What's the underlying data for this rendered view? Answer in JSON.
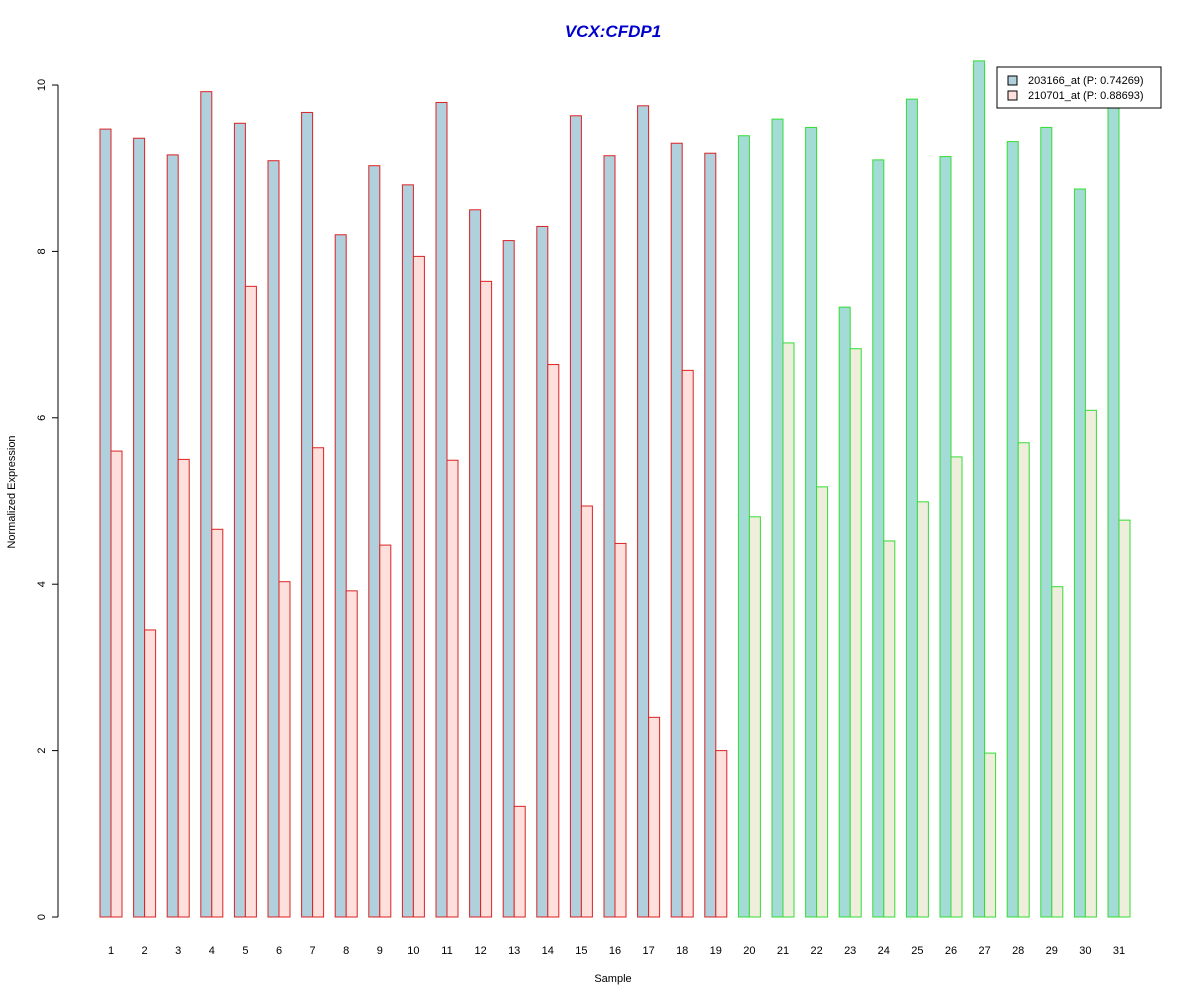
{
  "chart_data": {
    "type": "bar",
    "title": "VCX:CFDP1",
    "xlabel": "Sample",
    "ylabel": "Normalized Expression",
    "ylim": [
      0,
      10
    ],
    "yticks": [
      "0",
      "2",
      "4",
      "6",
      "8",
      "10"
    ],
    "categories": [
      "1",
      "2",
      "3",
      "4",
      "5",
      "6",
      "7",
      "8",
      "9",
      "10",
      "11",
      "12",
      "13",
      "14",
      "15",
      "16",
      "17",
      "18",
      "19",
      "20",
      "21",
      "22",
      "23",
      "24",
      "25",
      "26",
      "27",
      "28",
      "29",
      "30",
      "31"
    ],
    "series": [
      {
        "name": "203166_at (P: 0.74269)",
        "values": [
          9.47,
          9.36,
          9.16,
          9.92,
          9.54,
          9.09,
          9.67,
          8.2,
          9.03,
          8.8,
          9.79,
          8.5,
          8.13,
          8.3,
          9.63,
          9.15,
          9.75,
          9.3,
          9.18,
          9.39,
          9.59,
          9.49,
          7.33,
          9.1,
          9.83,
          9.14,
          10.29,
          9.32,
          9.49,
          8.75,
          9.75
        ]
      },
      {
        "name": "210701_at (P: 0.88693)",
        "values": [
          5.6,
          3.45,
          5.5,
          4.66,
          7.58,
          4.03,
          5.64,
          3.92,
          4.47,
          7.94,
          5.49,
          7.64,
          1.33,
          6.64,
          4.94,
          4.49,
          2.4,
          6.57,
          2.0,
          4.81,
          6.9,
          5.17,
          6.83,
          4.52,
          4.99,
          5.53,
          1.97,
          5.7,
          3.97,
          6.09,
          4.77
        ]
      }
    ],
    "groups": [
      {
        "from": 1,
        "to": 19,
        "outline": "#dd2222",
        "fill_a": "#b0d0de",
        "fill_b": "#fde0dc"
      },
      {
        "from": 20,
        "to": 31,
        "outline": "#33dd33",
        "fill_a": "#a3dcd6",
        "fill_b": "#efeedc"
      }
    ],
    "legend_position": "top-right",
    "title_color": "#0000cc"
  }
}
